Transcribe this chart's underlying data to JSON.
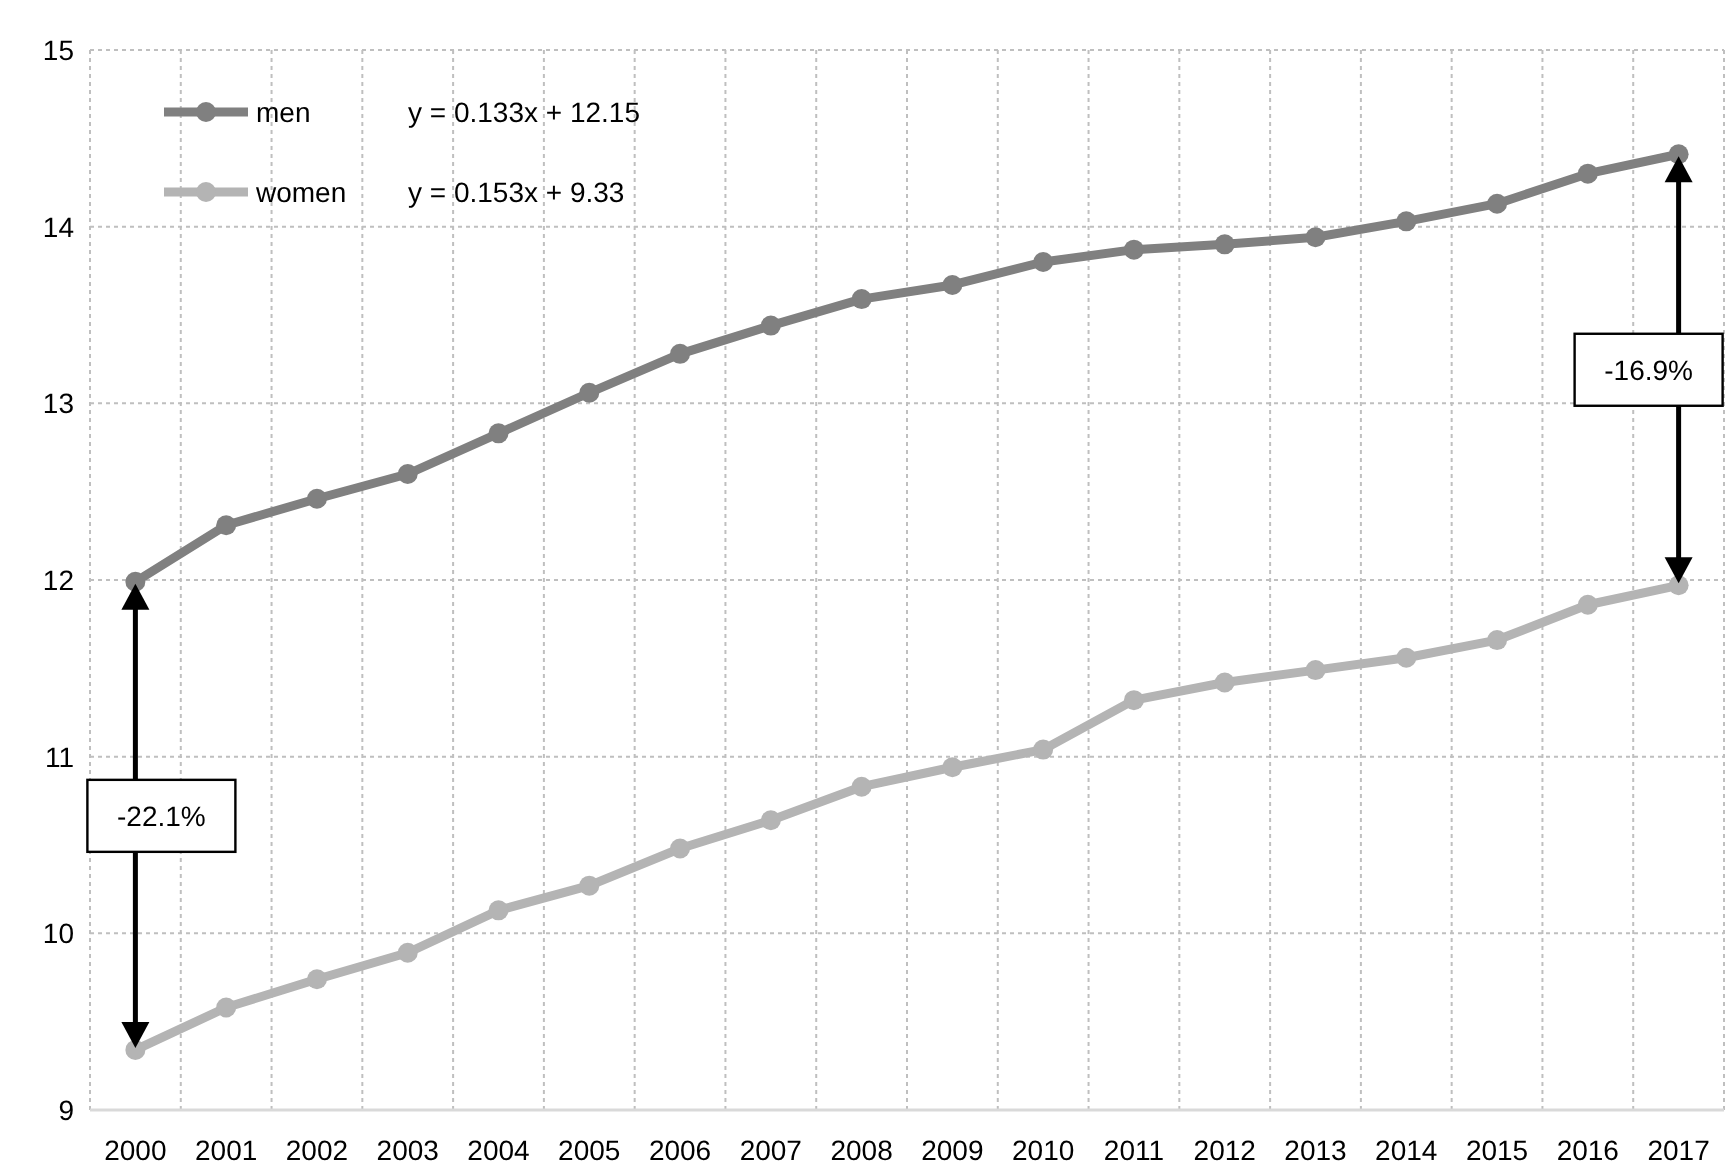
{
  "chart_data": {
    "type": "line",
    "categories": [
      "2000",
      "2001",
      "2002",
      "2003",
      "2004",
      "2005",
      "2006",
      "2007",
      "2008",
      "2009",
      "2010",
      "2011",
      "2012",
      "2013",
      "2014",
      "2015",
      "2016",
      "2017"
    ],
    "series": [
      {
        "name": "men",
        "color": "#808080",
        "values": [
          11.99,
          12.31,
          12.46,
          12.6,
          12.83,
          13.06,
          13.28,
          13.44,
          13.59,
          13.67,
          13.8,
          13.87,
          13.9,
          13.94,
          14.03,
          14.13,
          14.3,
          14.41
        ]
      },
      {
        "name": "women",
        "color": "#b4b4b4",
        "values": [
          9.34,
          9.58,
          9.74,
          9.89,
          10.13,
          10.27,
          10.48,
          10.64,
          10.83,
          10.94,
          11.04,
          11.32,
          11.42,
          11.49,
          11.56,
          11.66,
          11.86,
          11.97
        ]
      }
    ],
    "ylim": [
      9,
      15
    ],
    "yticks": [
      9,
      10,
      11,
      12,
      13,
      14,
      15
    ],
    "grid": true,
    "legend": "top left",
    "marker": "circle",
    "line_style": "solid",
    "annotations": [
      "y = 0.133x + 12.15",
      "y = 0.153x + 9.33",
      "-22.1%",
      "-16.9%"
    ]
  }
}
